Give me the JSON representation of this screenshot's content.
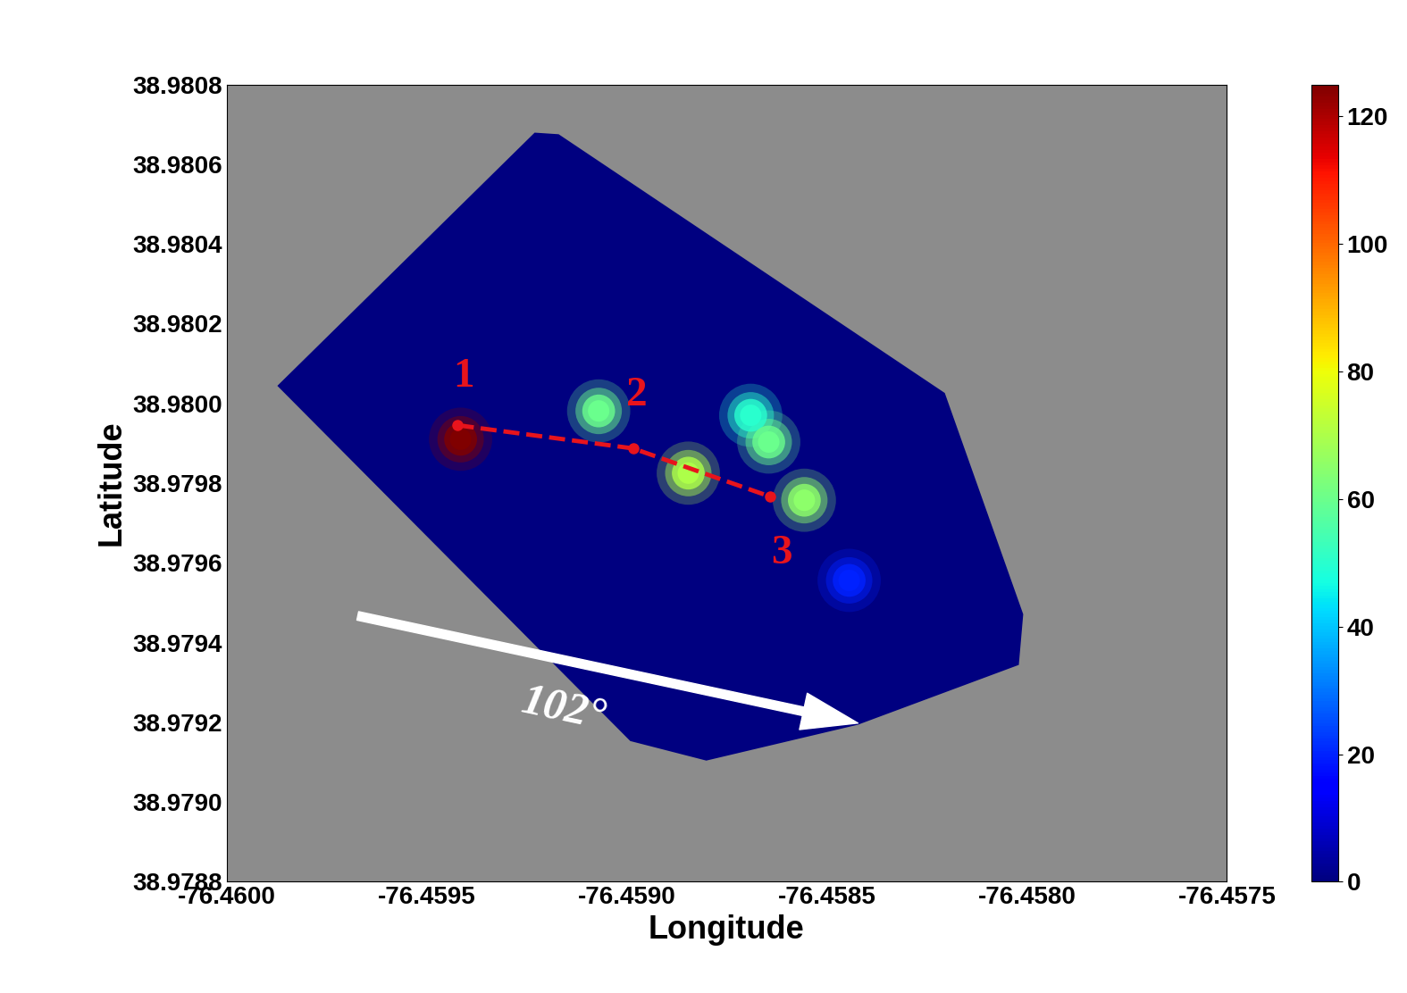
{
  "chart_data": {
    "type": "heatmap",
    "x_label": "Longitude",
    "y_label": "Latitude",
    "xlim": [
      -76.46,
      -76.4575
    ],
    "ylim": [
      38.9788,
      38.9808
    ],
    "xticks": [
      {
        "value": -76.46,
        "label": "-76.4600"
      },
      {
        "value": -76.4595,
        "label": "-76.4595"
      },
      {
        "value": -76.459,
        "label": "-76.4590"
      },
      {
        "value": -76.4585,
        "label": "-76.4585"
      },
      {
        "value": -76.458,
        "label": "-76.4580"
      },
      {
        "value": -76.4575,
        "label": "-76.4575"
      }
    ],
    "yticks": [
      {
        "value": 38.9788,
        "label": "38.9788"
      },
      {
        "value": 38.979,
        "label": "38.9790"
      },
      {
        "value": 38.9792,
        "label": "38.9792"
      },
      {
        "value": 38.9794,
        "label": "38.9794"
      },
      {
        "value": 38.9796,
        "label": "38.9796"
      },
      {
        "value": 38.9798,
        "label": "38.9798"
      },
      {
        "value": 38.98,
        "label": "38.9800"
      },
      {
        "value": 38.9802,
        "label": "38.9802"
      },
      {
        "value": 38.9804,
        "label": "38.9804"
      },
      {
        "value": 38.9806,
        "label": "38.9806"
      },
      {
        "value": 38.9808,
        "label": "38.9808"
      }
    ],
    "colorbar_range": [
      0,
      125
    ],
    "colorbar_ticks": [
      0,
      20,
      40,
      60,
      80,
      100,
      120
    ],
    "region": [
      [
        -76.459873,
        38.980044
      ],
      [
        -76.45923,
        38.980679
      ],
      [
        -76.45917,
        38.980675
      ],
      [
        -76.458205,
        38.980026
      ],
      [
        -76.458009,
        38.979471
      ],
      [
        -76.45802,
        38.979344
      ],
      [
        -76.458422,
        38.979194
      ],
      [
        -76.458801,
        38.979104
      ],
      [
        -76.458991,
        38.979153
      ]
    ],
    "cells": [
      {
        "x": -76.459415,
        "y": 38.97991,
        "value": 125
      },
      {
        "x": -76.45907,
        "y": 38.979981,
        "value": 60
      },
      {
        "x": -76.458846,
        "y": 38.979825,
        "value": 70
      },
      {
        "x": -76.45869,
        "y": 38.97997,
        "value": 50
      },
      {
        "x": -76.458645,
        "y": 38.979903,
        "value": 60
      },
      {
        "x": -76.458556,
        "y": 38.979757,
        "value": 65
      },
      {
        "x": -76.458444,
        "y": 38.979556,
        "value": 20
      }
    ],
    "path": {
      "x": [
        -76.459422,
        -76.458984,
        -76.458641
      ],
      "y": [
        38.979945,
        38.979887,
        38.979766
      ],
      "color": "#e8141c",
      "line_style": "dashed",
      "marker": "o"
    },
    "annotations": [
      {
        "text": "1",
        "x": -76.459408,
        "y": 38.980066
      },
      {
        "text": "2",
        "x": -76.458975,
        "y": 38.980019
      },
      {
        "text": "3",
        "x": -76.458612,
        "y": 38.979623
      }
    ],
    "arrow": {
      "text": "102°",
      "x_start": -76.459672,
      "y_start": 38.979467,
      "x_end": -76.458422,
      "y_end": 38.979198,
      "text_x": -76.459158,
      "text_y": 38.979232
    }
  }
}
